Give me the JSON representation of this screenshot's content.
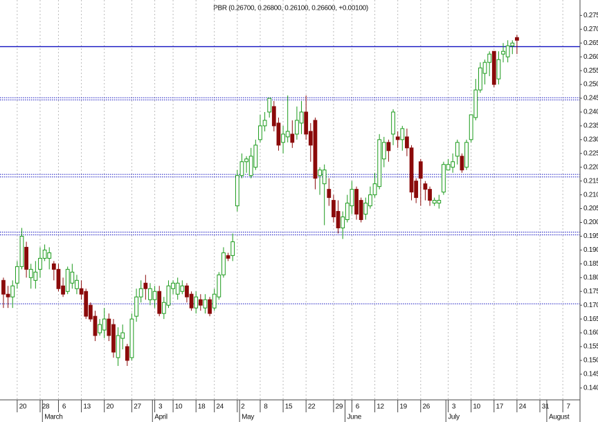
{
  "chart_data": {
    "type": "candlestick",
    "title": "PBR (0.26700, 0.26800, 0.26100, 0.26600, +0.00100)",
    "categories": [
      null,
      null,
      null,
      "20",
      null,
      null,
      null,
      null,
      "28",
      null,
      null,
      null,
      "6",
      null,
      null,
      null,
      null,
      "13",
      null,
      null,
      null,
      null,
      "20",
      null,
      null,
      null,
      null,
      null,
      "27",
      null,
      null,
      null,
      null,
      "3",
      null,
      null,
      null,
      "10",
      null,
      null,
      null,
      null,
      "18",
      null,
      null,
      null,
      "24",
      null,
      null,
      null,
      null,
      "2",
      null,
      null,
      null,
      null,
      "8",
      null,
      null,
      null,
      null,
      "15",
      null,
      null,
      null,
      null,
      "22",
      null,
      null,
      null,
      null,
      null,
      "29",
      null,
      null,
      null,
      "6",
      null,
      null,
      null,
      null,
      "12",
      null,
      null,
      null,
      null,
      "19",
      null,
      null,
      null,
      null,
      "26",
      null,
      null,
      null,
      null,
      null,
      "3",
      null,
      null,
      null,
      null,
      "10",
      null,
      null,
      null,
      null,
      "17",
      null,
      null,
      null,
      null,
      "24",
      null,
      null,
      null,
      null,
      "31",
      null,
      null,
      null,
      null,
      "7",
      null,
      null,
      null
    ],
    "month_categories": [
      null,
      null,
      null,
      null,
      null,
      null,
      null,
      null,
      null,
      "March",
      null,
      null,
      null,
      null,
      null,
      null,
      null,
      null,
      null,
      null,
      null,
      null,
      null,
      null,
      null,
      null,
      null,
      null,
      null,
      null,
      null,
      null,
      null,
      "April",
      null,
      null,
      null,
      null,
      null,
      null,
      null,
      null,
      null,
      null,
      null,
      null,
      null,
      null,
      null,
      null,
      null,
      null,
      "May",
      null,
      null,
      null,
      null,
      null,
      null,
      null,
      null,
      null,
      null,
      null,
      null,
      null,
      null,
      null,
      null,
      null,
      null,
      null,
      null,
      null,
      null,
      "June",
      null,
      null,
      null,
      null,
      null,
      null,
      null,
      null,
      null,
      null,
      null,
      null,
      null,
      null,
      null,
      null,
      null,
      null,
      null,
      null,
      null,
      "July",
      null,
      null,
      null,
      null,
      null,
      null,
      null,
      null,
      null,
      null,
      null,
      null,
      null,
      null,
      null,
      null,
      null,
      null,
      null,
      null,
      null,
      "August",
      null,
      null,
      null,
      null,
      null,
      null
    ],
    "open": [
      0.179,
      0.174,
      0.173,
      0.178,
      0.184,
      0.191,
      0.18,
      0.179,
      0.183,
      0.187,
      0.187,
      0.185,
      0.183,
      0.177,
      0.175,
      0.178,
      0.176,
      0.176,
      0.175,
      0.17,
      0.166,
      0.16,
      0.161,
      0.165,
      0.163,
      0.151,
      0.158,
      0.155,
      0.151,
      0.166,
      0.173,
      0.178,
      0.172,
      0.172,
      0.175,
      0.167,
      0.17,
      0.176,
      0.174,
      0.175,
      0.177,
      0.174,
      0.169,
      0.172,
      0.169,
      0.172,
      0.169,
      0.173,
      0.181,
      0.188,
      0.188,
      0.206,
      0.217,
      0.222,
      0.217,
      0.22,
      0.23,
      0.235,
      0.24,
      0.242,
      0.236,
      0.229,
      0.231,
      0.232,
      0.232,
      0.236,
      0.24,
      0.233,
      0.237,
      0.217,
      0.214,
      0.212,
      0.208,
      0.204,
      0.198,
      0.201,
      0.206,
      0.212,
      0.208,
      0.203,
      0.206,
      0.21,
      0.213,
      0.223,
      0.229,
      0.232,
      0.231,
      0.23,
      0.231,
      0.227,
      0.215,
      0.222,
      0.214,
      0.212,
      0.207,
      0.207,
      0.211,
      0.219,
      0.22,
      0.224,
      0.224,
      0.22,
      0.23,
      0.238,
      0.248,
      0.254,
      0.258,
      0.262,
      0.252,
      0.261,
      0.26,
      0.264,
      0.267,
      null,
      null,
      null,
      null,
      null,
      null,
      null,
      null,
      null,
      null,
      null,
      null,
      null
    ],
    "high": [
      0.18,
      0.177,
      0.179,
      0.186,
      0.198,
      0.193,
      0.185,
      0.186,
      0.191,
      0.192,
      0.191,
      0.186,
      0.185,
      0.18,
      0.184,
      0.185,
      0.181,
      0.179,
      0.176,
      0.171,
      0.168,
      0.165,
      0.169,
      0.167,
      0.165,
      0.162,
      0.163,
      0.156,
      0.167,
      0.176,
      0.179,
      0.181,
      0.178,
      0.177,
      0.177,
      0.173,
      0.179,
      0.179,
      0.18,
      0.179,
      0.178,
      0.175,
      0.175,
      0.174,
      0.174,
      0.173,
      0.176,
      0.182,
      0.191,
      0.189,
      0.196,
      0.219,
      0.225,
      0.224,
      0.227,
      0.23,
      0.239,
      0.24,
      0.245,
      0.244,
      0.238,
      0.235,
      0.246,
      0.237,
      0.242,
      0.244,
      0.246,
      0.236,
      0.238,
      0.22,
      0.221,
      0.216,
      0.21,
      0.208,
      0.204,
      0.21,
      0.215,
      0.213,
      0.209,
      0.209,
      0.213,
      0.218,
      0.232,
      0.231,
      0.23,
      0.241,
      0.233,
      0.235,
      0.234,
      0.228,
      0.216,
      0.223,
      0.215,
      0.213,
      0.209,
      0.21,
      0.222,
      0.223,
      0.225,
      0.23,
      0.225,
      0.23,
      0.239,
      0.252,
      0.258,
      0.259,
      0.262,
      0.262,
      0.262,
      0.265,
      0.266,
      0.266,
      0.268,
      null,
      null,
      null,
      null,
      null,
      null,
      null,
      null,
      null,
      null,
      null,
      null,
      null
    ],
    "low": [
      0.169,
      0.169,
      0.169,
      0.176,
      0.183,
      0.18,
      0.176,
      0.176,
      0.18,
      0.186,
      0.183,
      0.179,
      0.175,
      0.173,
      0.174,
      0.176,
      0.174,
      0.172,
      0.165,
      0.164,
      0.157,
      0.159,
      0.158,
      0.157,
      0.151,
      0.148,
      0.154,
      0.148,
      0.15,
      0.164,
      0.171,
      0.172,
      0.17,
      0.169,
      0.166,
      0.165,
      0.169,
      0.174,
      0.172,
      0.174,
      0.171,
      0.168,
      0.167,
      0.168,
      0.167,
      0.166,
      0.168,
      0.172,
      0.18,
      0.186,
      0.186,
      0.204,
      0.216,
      0.218,
      0.216,
      0.219,
      0.229,
      0.233,
      0.238,
      0.233,
      0.226,
      0.225,
      0.229,
      0.227,
      0.23,
      0.232,
      0.23,
      0.222,
      0.212,
      0.21,
      0.199,
      0.206,
      0.2,
      0.196,
      0.194,
      0.2,
      0.203,
      0.201,
      0.2,
      0.201,
      0.205,
      0.209,
      0.212,
      0.22,
      0.222,
      0.228,
      0.227,
      0.226,
      0.224,
      0.208,
      0.207,
      0.206,
      0.208,
      0.206,
      0.206,
      0.205,
      0.21,
      0.219,
      0.218,
      0.221,
      0.218,
      0.219,
      0.229,
      0.237,
      0.247,
      0.25,
      0.253,
      0.249,
      0.25,
      0.258,
      0.258,
      0.261,
      0.261,
      null,
      null,
      null,
      null,
      null,
      null,
      null,
      null,
      null,
      null,
      null,
      null,
      null
    ],
    "close": [
      0.174,
      0.173,
      0.177,
      0.184,
      0.195,
      0.183,
      0.183,
      0.182,
      0.187,
      0.19,
      0.189,
      0.183,
      0.176,
      0.174,
      0.183,
      0.182,
      0.179,
      0.174,
      0.166,
      0.165,
      0.159,
      0.163,
      0.165,
      0.159,
      0.153,
      0.159,
      0.16,
      0.15,
      0.165,
      0.173,
      0.176,
      0.176,
      0.176,
      0.175,
      0.167,
      0.171,
      0.177,
      0.178,
      0.178,
      0.177,
      0.173,
      0.169,
      0.173,
      0.17,
      0.172,
      0.167,
      0.174,
      0.181,
      0.189,
      0.187,
      0.193,
      0.217,
      0.222,
      0.223,
      0.224,
      0.228,
      0.235,
      0.237,
      0.245,
      0.235,
      0.228,
      0.232,
      0.233,
      0.229,
      0.237,
      0.24,
      0.232,
      0.228,
      0.216,
      0.219,
      0.219,
      0.209,
      0.202,
      0.198,
      0.202,
      0.207,
      0.212,
      0.203,
      0.201,
      0.207,
      0.21,
      0.214,
      0.23,
      0.229,
      0.226,
      0.24,
      0.23,
      0.234,
      0.227,
      0.211,
      0.209,
      0.216,
      0.212,
      0.208,
      0.208,
      0.208,
      0.221,
      0.221,
      0.222,
      0.229,
      0.219,
      0.229,
      0.239,
      0.248,
      0.256,
      0.258,
      0.261,
      0.25,
      0.259,
      0.262,
      0.264,
      0.265,
      0.266,
      null,
      null,
      null,
      null,
      null,
      null,
      null,
      null,
      null,
      null,
      null,
      null,
      null
    ],
    "up_color": "#1a9a1a",
    "down_color": "#8b0a0a",
    "ylim": [
      0.1357,
      0.2806
    ],
    "yticks": [
      {
        "value": 0.14,
        "label": "0.140"
      },
      {
        "value": 0.145,
        "label": "0.145"
      },
      {
        "value": 0.15,
        "label": "0.150"
      },
      {
        "value": 0.155,
        "label": "0.155"
      },
      {
        "value": 0.16,
        "label": "0.160"
      },
      {
        "value": 0.165,
        "label": "0.165"
      },
      {
        "value": 0.17,
        "label": "0.170"
      },
      {
        "value": 0.175,
        "label": "0.175"
      },
      {
        "value": 0.18,
        "label": "0.180"
      },
      {
        "value": 0.185,
        "label": "0.185"
      },
      {
        "value": 0.19,
        "label": "0.190"
      },
      {
        "value": 0.195,
        "label": "0.195"
      },
      {
        "value": 0.2,
        "label": "0.200"
      },
      {
        "value": 0.205,
        "label": "0.205"
      },
      {
        "value": 0.21,
        "label": "0.210"
      },
      {
        "value": 0.215,
        "label": "0.215"
      },
      {
        "value": 0.22,
        "label": "0.220"
      },
      {
        "value": 0.225,
        "label": "0.225"
      },
      {
        "value": 0.23,
        "label": "0.230"
      },
      {
        "value": 0.235,
        "label": "0.235"
      },
      {
        "value": 0.24,
        "label": "0.240"
      },
      {
        "value": 0.245,
        "label": "0.245"
      },
      {
        "value": 0.25,
        "label": "0.250"
      },
      {
        "value": 0.255,
        "label": "0.255"
      },
      {
        "value": 0.26,
        "label": "0.260"
      },
      {
        "value": 0.265,
        "label": "0.265"
      },
      {
        "value": 0.27,
        "label": "0.270"
      },
      {
        "value": 0.275,
        "label": "0.275"
      }
    ],
    "horizontal_lines": [
      {
        "value": 0.2637,
        "style": "solid"
      },
      {
        "value": 0.2452,
        "style": "dotted"
      },
      {
        "value": 0.2444,
        "style": "dotted"
      },
      {
        "value": 0.2174,
        "style": "dotted"
      },
      {
        "value": 0.2165,
        "style": "dotted"
      },
      {
        "value": 0.1965,
        "style": "dotted"
      },
      {
        "value": 0.1955,
        "style": "dotted"
      },
      {
        "value": 0.1705,
        "style": "dotted"
      }
    ],
    "horizontal_line_color": "#1010c0",
    "grid": true
  }
}
